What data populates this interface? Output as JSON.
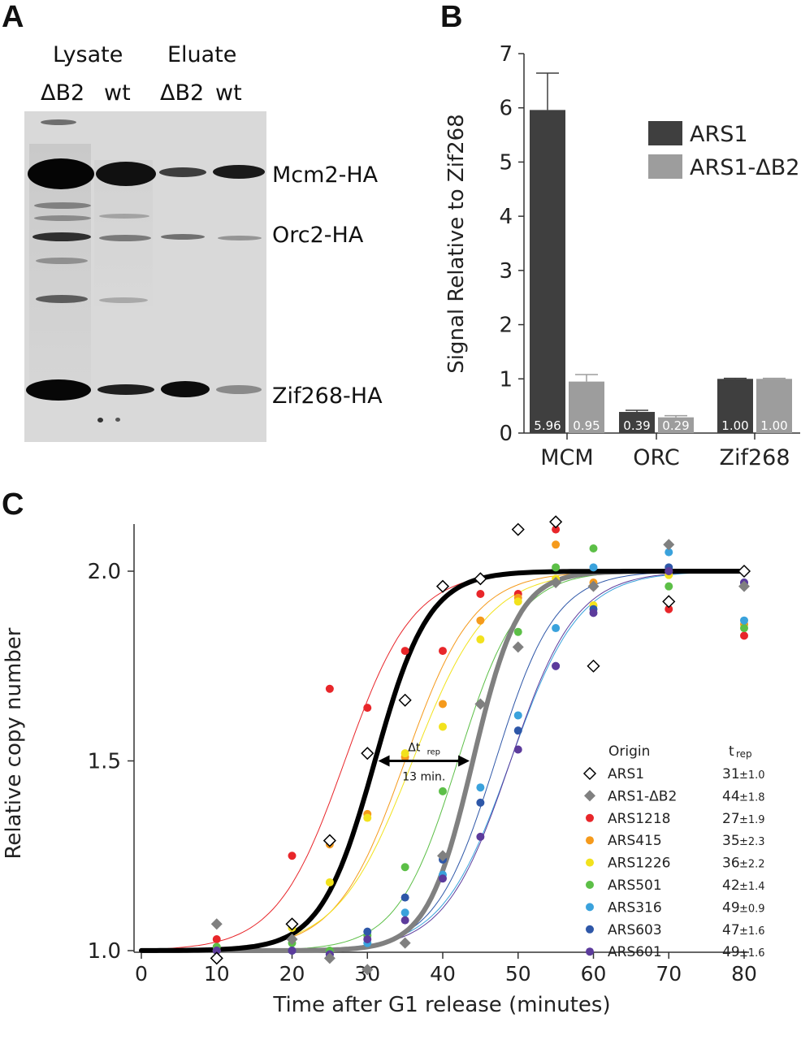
{
  "panels": {
    "a": "A",
    "b": "B",
    "c": "C"
  },
  "panel_a": {
    "headers": {
      "lysate": "Lysate",
      "eluate": "Eluate"
    },
    "lanes": [
      "ΔB2",
      "wt",
      "ΔB2",
      "wt"
    ],
    "bands": [
      "Mcm2-HA",
      "Orc2-HA",
      "Zif268-HA"
    ]
  },
  "chart_data": [
    {
      "type": "bar",
      "ylabel": "Signal Relative to Zif268",
      "xlabel": "",
      "ylim": [
        0,
        7
      ],
      "yticks": [
        0,
        1,
        2,
        3,
        4,
        5,
        6,
        7
      ],
      "categories": [
        "MCM",
        "ORC",
        "Zif268"
      ],
      "legend_position": "top-right",
      "series": [
        {
          "name": "ARS1",
          "color": "#3f3f3f",
          "values": [
            5.96,
            0.39,
            1.0
          ],
          "errors": [
            0.68,
            0.03,
            0.01
          ],
          "value_labels": [
            "5.96",
            "0.39",
            "1.00"
          ]
        },
        {
          "name": "ARS1-ΔB2",
          "color": "#9d9d9d",
          "values": [
            0.95,
            0.29,
            1.0
          ],
          "errors": [
            0.13,
            0.03,
            0.01
          ],
          "value_labels": [
            "0.95",
            "0.29",
            "1.00"
          ]
        }
      ]
    },
    {
      "type": "scatter",
      "xlabel": "Time after G1 release (minutes)",
      "ylabel": "Relative copy number",
      "xlim": [
        0,
        80
      ],
      "ylim": [
        0.93,
        2.12
      ],
      "xticks": [
        0,
        10,
        20,
        30,
        40,
        50,
        60,
        70,
        80
      ],
      "yticks": [
        1.0,
        1.5,
        2.0
      ],
      "ytick_labels": [
        "1.0",
        "1.5",
        "2.0"
      ],
      "annotation": {
        "label": "Δt",
        "subscript": "rep",
        "text": "13 min.",
        "from_x": 31,
        "to_x": 44,
        "y": 1.5
      },
      "legend_header": {
        "origin": "Origin",
        "trep": "t",
        "trep_sub": "rep"
      },
      "series": [
        {
          "name": "ARS1",
          "marker": "diamond-open",
          "color": "#000000",
          "trep_value": "31",
          "trep_err": "±1.0",
          "t50": 31,
          "k": 0.28,
          "curve_width": 6,
          "points": [
            [
              10,
              0.98
            ],
            [
              20,
              1.07
            ],
            [
              25,
              1.29
            ],
            [
              30,
              1.52
            ],
            [
              35,
              1.66
            ],
            [
              40,
              1.96
            ],
            [
              45,
              1.98
            ],
            [
              50,
              2.11
            ],
            [
              55,
              2.13
            ],
            [
              60,
              1.75
            ],
            [
              70,
              1.92
            ],
            [
              80,
              2.0
            ]
          ]
        },
        {
          "name": "ARS1-ΔB2",
          "marker": "diamond-filled",
          "color": "#808080",
          "trep_value": "44",
          "trep_err": "±1.8",
          "t50": 44,
          "k": 0.33,
          "curve_width": 6,
          "points": [
            [
              10,
              1.07
            ],
            [
              20,
              1.03
            ],
            [
              25,
              0.98
            ],
            [
              30,
              0.95
            ],
            [
              35,
              1.02
            ],
            [
              40,
              1.25
            ],
            [
              45,
              1.65
            ],
            [
              50,
              1.8
            ],
            [
              55,
              1.97
            ],
            [
              60,
              1.96
            ],
            [
              70,
              2.07
            ],
            [
              80,
              1.96
            ]
          ]
        },
        {
          "name": "ARS1218",
          "marker": "dot",
          "color": "#e8262a",
          "trep_value": "27",
          "trep_err": "±1.9",
          "t50": 27,
          "k": 0.22,
          "curve_width": 1,
          "points": [
            [
              10,
              1.03
            ],
            [
              20,
              1.25
            ],
            [
              25,
              1.69
            ],
            [
              30,
              1.64
            ],
            [
              35,
              1.79
            ],
            [
              40,
              1.79
            ],
            [
              45,
              1.94
            ],
            [
              50,
              1.94
            ],
            [
              55,
              2.11
            ],
            [
              60,
              1.96
            ],
            [
              70,
              1.9
            ],
            [
              80,
              1.83
            ]
          ]
        },
        {
          "name": "ARS415",
          "marker": "dot",
          "color": "#f59a1c",
          "trep_value": "35",
          "trep_err": "±2.3",
          "t50": 35,
          "k": 0.22,
          "curve_width": 1,
          "points": [
            [
              10,
              1.0
            ],
            [
              20,
              1.07
            ],
            [
              25,
              1.28
            ],
            [
              30,
              1.36
            ],
            [
              35,
              1.51
            ],
            [
              40,
              1.65
            ],
            [
              45,
              1.87
            ],
            [
              50,
              1.93
            ],
            [
              55,
              2.07
            ],
            [
              60,
              1.97
            ],
            [
              70,
              2.0
            ],
            [
              80,
              1.86
            ]
          ]
        },
        {
          "name": "ARS1226",
          "marker": "dot",
          "color": "#f2e21d",
          "trep_value": "36",
          "trep_err": "±2.2",
          "t50": 36,
          "k": 0.2,
          "curve_width": 1,
          "points": [
            [
              10,
              1.0
            ],
            [
              20,
              1.06
            ],
            [
              25,
              1.18
            ],
            [
              30,
              1.35
            ],
            [
              35,
              1.52
            ],
            [
              40,
              1.59
            ],
            [
              45,
              1.82
            ],
            [
              50,
              1.92
            ],
            [
              55,
              1.98
            ],
            [
              60,
              1.91
            ],
            [
              70,
              1.99
            ],
            [
              80,
              2.0
            ]
          ]
        },
        {
          "name": "ARS501",
          "marker": "dot",
          "color": "#5cbf47",
          "trep_value": "42",
          "trep_err": "±1.4",
          "t50": 42,
          "k": 0.25,
          "curve_width": 1,
          "points": [
            [
              10,
              1.01
            ],
            [
              20,
              1.02
            ],
            [
              25,
              1.0
            ],
            [
              30,
              1.04
            ],
            [
              35,
              1.22
            ],
            [
              40,
              1.42
            ],
            [
              45,
              1.65
            ],
            [
              50,
              1.84
            ],
            [
              55,
              2.01
            ],
            [
              60,
              2.06
            ],
            [
              70,
              1.96
            ],
            [
              80,
              1.85
            ]
          ]
        },
        {
          "name": "ARS316",
          "marker": "dot",
          "color": "#3aa2dc",
          "trep_value": "49",
          "trep_err": "±0.9",
          "t50": 49,
          "k": 0.22,
          "curve_width": 1,
          "points": [
            [
              10,
              0.98
            ],
            [
              20,
              1.0
            ],
            [
              25,
              0.99
            ],
            [
              30,
              1.02
            ],
            [
              35,
              1.1
            ],
            [
              40,
              1.2
            ],
            [
              45,
              1.43
            ],
            [
              50,
              1.62
            ],
            [
              55,
              1.85
            ],
            [
              60,
              2.01
            ],
            [
              70,
              2.05
            ],
            [
              80,
              1.87
            ]
          ]
        },
        {
          "name": "ARS603",
          "marker": "dot",
          "color": "#2e57a8",
          "trep_value": "47",
          "trep_err": "±1.6",
          "t50": 47,
          "k": 0.25,
          "curve_width": 1,
          "points": [
            [
              10,
              1.0
            ],
            [
              20,
              1.0
            ],
            [
              25,
              0.99
            ],
            [
              30,
              1.05
            ],
            [
              35,
              1.14
            ],
            [
              40,
              1.24
            ],
            [
              45,
              1.39
            ],
            [
              50,
              1.58
            ],
            [
              55,
              1.75
            ],
            [
              60,
              1.9
            ],
            [
              70,
              2.01
            ],
            [
              80,
              1.97
            ]
          ]
        },
        {
          "name": "ARS601",
          "marker": "dot",
          "color": "#5c3b9c",
          "trep_value": "49",
          "trep_err": "±1.6",
          "t50": 49,
          "k": 0.23,
          "curve_width": 1,
          "points": [
            [
              10,
              1.0
            ],
            [
              20,
              1.0
            ],
            [
              25,
              0.99
            ],
            [
              30,
              1.03
            ],
            [
              35,
              1.08
            ],
            [
              40,
              1.19
            ],
            [
              45,
              1.3
            ],
            [
              50,
              1.53
            ],
            [
              55,
              1.75
            ],
            [
              60,
              1.89
            ],
            [
              70,
              2.0
            ],
            [
              80,
              1.97
            ]
          ]
        }
      ]
    }
  ]
}
